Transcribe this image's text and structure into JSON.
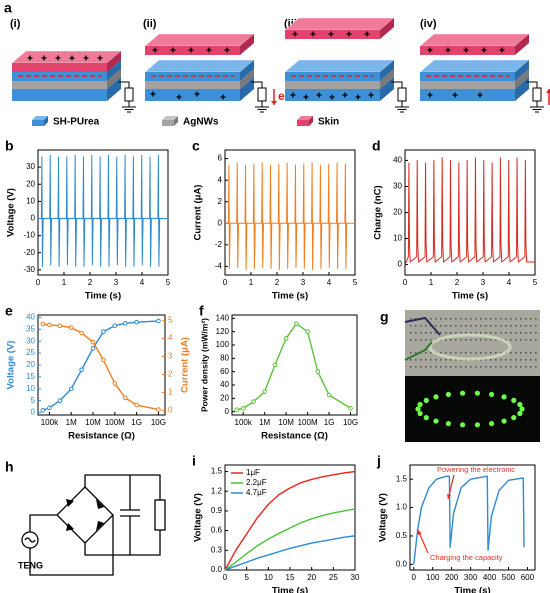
{
  "schematic": {
    "label": "a",
    "stages": [
      "(i)",
      "(ii)",
      "(iii)",
      "(iv)"
    ],
    "electron": "e",
    "legend": [
      "SH-PUrea",
      "AgNWs",
      "Skin"
    ]
  },
  "chart_data": [
    {
      "type": "line",
      "panel": "b",
      "y_label": "Voltage (V)",
      "x_label": "Time (s)",
      "x": [
        0,
        0.13,
        0.15,
        0.17,
        0.2,
        0.45,
        0.47,
        0.49,
        0.52,
        0.77,
        0.79,
        0.81,
        0.84,
        1.09,
        1.11,
        1.13,
        1.16,
        1.41,
        1.43,
        1.45,
        1.48,
        1.73,
        1.75,
        1.77,
        1.8,
        2.05,
        2.07,
        2.09,
        2.12,
        2.37,
        2.39,
        2.41,
        2.44,
        2.69,
        2.71,
        2.73,
        2.76,
        3.01,
        3.03,
        3.05,
        3.08,
        3.33,
        3.35,
        3.37,
        3.4,
        3.65,
        3.67,
        3.69,
        3.72,
        3.97,
        3.99,
        4.01,
        4.04,
        4.29,
        4.31,
        4.33,
        4.36,
        4.61,
        4.63,
        4.65,
        4.68,
        5
      ],
      "series": [
        {
          "color": "#2f8ad0",
          "values": [
            0,
            0,
            36,
            -28,
            0,
            0,
            37,
            -27,
            0,
            0,
            36,
            -28,
            0,
            0,
            36,
            -27,
            0,
            0,
            37,
            -28,
            0,
            0,
            36,
            -28,
            0,
            0,
            37,
            -27,
            0,
            0,
            36,
            -28,
            0,
            0,
            37,
            -28,
            0,
            0,
            36,
            -27,
            0,
            0,
            37,
            -28,
            0,
            0,
            36,
            -28,
            0,
            0,
            37,
            -27,
            0,
            0,
            36,
            -28,
            0,
            0,
            37,
            -28,
            0,
            0
          ]
        }
      ],
      "xlim": [
        0,
        5
      ],
      "xticks": [
        0,
        1,
        2,
        3,
        4,
        5
      ],
      "ylim": [
        -33,
        40
      ],
      "yticks": [
        -30,
        -20,
        -10,
        0,
        10,
        20,
        30
      ]
    },
    {
      "type": "line",
      "panel": "c",
      "y_label": "Current (μA)",
      "x_label": "Time (s)",
      "x": [
        0,
        0.13,
        0.15,
        0.17,
        0.2,
        0.45,
        0.47,
        0.49,
        0.52,
        0.77,
        0.79,
        0.81,
        0.84,
        1.09,
        1.11,
        1.13,
        1.16,
        1.41,
        1.43,
        1.45,
        1.48,
        1.73,
        1.75,
        1.77,
        1.8,
        2.05,
        2.07,
        2.09,
        2.12,
        2.37,
        2.39,
        2.41,
        2.44,
        2.69,
        2.71,
        2.73,
        2.76,
        3.01,
        3.03,
        3.05,
        3.08,
        3.33,
        3.35,
        3.37,
        3.4,
        3.65,
        3.67,
        3.69,
        3.72,
        3.97,
        3.99,
        4.01,
        4.04,
        4.29,
        4.31,
        4.33,
        4.36,
        4.61,
        4.63,
        4.65,
        4.68,
        5
      ],
      "series": [
        {
          "color": "#f07d1e",
          "values": [
            0,
            0,
            5.4,
            -4.2,
            0,
            0,
            5.6,
            -4.1,
            0,
            0,
            5.4,
            -4.3,
            0,
            0,
            5.5,
            -4.2,
            0,
            0,
            5.6,
            -4.1,
            0,
            0,
            5.4,
            -4.2,
            0,
            0,
            5.5,
            -4.3,
            0,
            0,
            5.6,
            -4.2,
            0,
            0,
            5.4,
            -4.1,
            0,
            0,
            5.5,
            -4.2,
            0,
            0,
            5.6,
            -4.3,
            0,
            0,
            5.4,
            -4.2,
            0,
            0,
            5.5,
            -4.1,
            0,
            0,
            5.6,
            -4.2,
            0,
            0,
            5.5,
            -4.2,
            0,
            0
          ]
        }
      ],
      "xlim": [
        0,
        5
      ],
      "xticks": [
        0,
        1,
        2,
        3,
        4,
        5
      ],
      "ylim": [
        -4.8,
        6.8
      ],
      "yticks": [
        -4,
        -2,
        0,
        2,
        4,
        6
      ]
    },
    {
      "type": "line",
      "panel": "d",
      "y_label": "Charge (nC)",
      "x_label": "Time (s)",
      "x": [
        0,
        0.13,
        0.15,
        0.17,
        0.2,
        0.45,
        0.47,
        0.49,
        0.52,
        0.77,
        0.79,
        0.81,
        0.84,
        1.09,
        1.11,
        1.13,
        1.16,
        1.41,
        1.43,
        1.45,
        1.48,
        1.73,
        1.75,
        1.77,
        1.8,
        2.05,
        2.07,
        2.09,
        2.12,
        2.37,
        2.39,
        2.41,
        2.44,
        2.69,
        2.71,
        2.73,
        2.76,
        3.01,
        3.03,
        3.05,
        3.08,
        3.33,
        3.35,
        3.37,
        3.4,
        3.65,
        3.67,
        3.69,
        3.72,
        3.97,
        3.99,
        4.01,
        4.04,
        4.29,
        4.31,
        4.33,
        4.36,
        4.61,
        4.63,
        4.65,
        4.68,
        5
      ],
      "series": [
        {
          "color": "#d42a20",
          "values": [
            0,
            3,
            39,
            8,
            1,
            3,
            40,
            8,
            1,
            3,
            39,
            8,
            1,
            3,
            40,
            8,
            1,
            3,
            41,
            8,
            1,
            3,
            40,
            8,
            1,
            3,
            39,
            8,
            1,
            3,
            40,
            8,
            1,
            3,
            41,
            8,
            1,
            3,
            40,
            8,
            1,
            3,
            39,
            8,
            1,
            3,
            41,
            8,
            1,
            3,
            40,
            8,
            1,
            3,
            41,
            8,
            1,
            3,
            40,
            8,
            1,
            1
          ]
        }
      ],
      "xlim": [
        0,
        5
      ],
      "xticks": [
        0,
        1,
        2,
        3,
        4,
        5
      ],
      "ylim": [
        -4,
        44
      ],
      "yticks": [
        0,
        10,
        20,
        30,
        40
      ]
    },
    {
      "type": "line",
      "panel": "e",
      "y_label": "Voltage (V)",
      "y2_label": "Current (μA)",
      "x_label": "Resistance (Ω)",
      "xscale": "log",
      "markers": true,
      "x": [
        50000,
        100000,
        300000,
        1000000,
        3000000,
        10000000,
        30000000,
        100000000,
        300000000,
        1000000000,
        10000000000
      ],
      "series": [
        {
          "color": "#2f8ad0",
          "values": [
            1,
            2,
            5,
            10,
            18,
            27,
            34,
            36.5,
            37.5,
            38,
            38.5
          ]
        },
        {
          "color": "#f07d1e",
          "axis": "y2",
          "values": [
            4.8,
            4.75,
            4.7,
            4.6,
            4.3,
            3.8,
            2.8,
            1.5,
            0.7,
            0.3,
            0.05
          ]
        }
      ],
      "xlim": [
        30000,
        20000000000
      ],
      "xticks": [
        {
          "value": 100000,
          "label": "100k"
        },
        {
          "value": 1000000,
          "label": "1M"
        },
        {
          "value": 10000000,
          "label": "10M"
        },
        {
          "value": 100000000,
          "label": "100M"
        },
        {
          "value": 1000000000,
          "label": "1G"
        },
        {
          "value": 10000000000,
          "label": "10G"
        }
      ],
      "ylim": [
        -1,
        41
      ],
      "yticks": [
        0,
        5,
        10,
        15,
        20,
        25,
        30,
        35,
        40
      ],
      "y2lim": [
        -0.25,
        5.3
      ],
      "y2ticks": [
        0,
        1,
        2,
        3,
        4,
        5
      ]
    },
    {
      "type": "line",
      "panel": "f",
      "y_label": "Power density (mW/m²)",
      "x_label": "Resistance (Ω)",
      "xscale": "log",
      "markers": true,
      "x": [
        50000,
        100000,
        300000,
        1000000,
        3000000,
        10000000,
        30000000,
        100000000,
        300000000,
        1000000000,
        10000000000
      ],
      "series": [
        {
          "color": "#5bc23a",
          "values": [
            3,
            5,
            15,
            30,
            70,
            110,
            132,
            120,
            60,
            25,
            5
          ]
        }
      ],
      "xlim": [
        30000,
        20000000000
      ],
      "xticks": [
        {
          "value": 100000,
          "label": "100k"
        },
        {
          "value": 1000000,
          "label": "1M"
        },
        {
          "value": 10000000,
          "label": "10M"
        },
        {
          "value": 100000000,
          "label": "100M"
        },
        {
          "value": 1000000000,
          "label": "1G"
        },
        {
          "value": 10000000000,
          "label": "10G"
        }
      ],
      "ylim": [
        -5,
        145
      ],
      "yticks": [
        0,
        20,
        40,
        60,
        80,
        100,
        120,
        140
      ]
    },
    {
      "type": "line",
      "panel": "i",
      "y_label": "Voltage (V)",
      "x_label": "Time (s)",
      "legend": "upper left",
      "x": [
        0,
        2.5,
        5,
        7.5,
        10,
        12.5,
        15,
        17.5,
        20,
        22.5,
        25,
        27.5,
        30
      ],
      "series": [
        {
          "name": "1μF",
          "color": "#e8261c",
          "values": [
            0,
            0.3,
            0.55,
            0.8,
            1.0,
            1.15,
            1.25,
            1.33,
            1.38,
            1.42,
            1.45,
            1.48,
            1.5
          ]
        },
        {
          "name": "2.2μF",
          "color": "#4cc234",
          "values": [
            0,
            0.12,
            0.25,
            0.37,
            0.47,
            0.56,
            0.64,
            0.72,
            0.78,
            0.83,
            0.87,
            0.9,
            0.93
          ]
        },
        {
          "name": "4.7μF",
          "color": "#2f8ad0",
          "values": [
            0,
            0.06,
            0.12,
            0.18,
            0.23,
            0.28,
            0.33,
            0.37,
            0.41,
            0.44,
            0.47,
            0.5,
            0.52
          ]
        }
      ],
      "xlim": [
        0,
        30
      ],
      "xticks": [
        0,
        5,
        10,
        15,
        20,
        25,
        30
      ],
      "ylim": [
        0,
        1.6
      ],
      "yticks": [
        {
          "value": 0,
          "label": "0.0"
        },
        0.3,
        0.6,
        0.9,
        1.2,
        1.5
      ]
    },
    {
      "type": "line",
      "panel": "j",
      "y_label": "Voltage (V)",
      "x_label": "Time (s)",
      "x": [
        0,
        20,
        40,
        80,
        120,
        170,
        188,
        192,
        210,
        250,
        300,
        385,
        388,
        392,
        410,
        450,
        500,
        575,
        578,
        582
      ],
      "series": [
        {
          "color": "#2f8ad0",
          "values": [
            0,
            0.6,
            1.0,
            1.35,
            1.5,
            1.55,
            1.55,
            0.3,
            0.9,
            1.35,
            1.5,
            1.55,
            1.55,
            0.25,
            0.85,
            1.3,
            1.48,
            1.52,
            1.52,
            0.3
          ]
        }
      ],
      "xlim": [
        -20,
        640
      ],
      "xticks": [
        0,
        100,
        200,
        300,
        400,
        500,
        600
      ],
      "ylim": [
        -0.1,
        1.75
      ],
      "yticks": [
        {
          "value": 0,
          "label": "0.0"
        },
        0.5,
        {
          "value": 1,
          "label": "1.0"
        },
        1.5
      ],
      "annotations": [
        {
          "text": "Powering the electronic",
          "color": "#e53020"
        },
        {
          "text": "Charging the capacity",
          "color": "#e53020"
        }
      ]
    }
  ],
  "photo": {
    "label": "g"
  },
  "circuit": {
    "label": "h",
    "source": "TENG"
  }
}
